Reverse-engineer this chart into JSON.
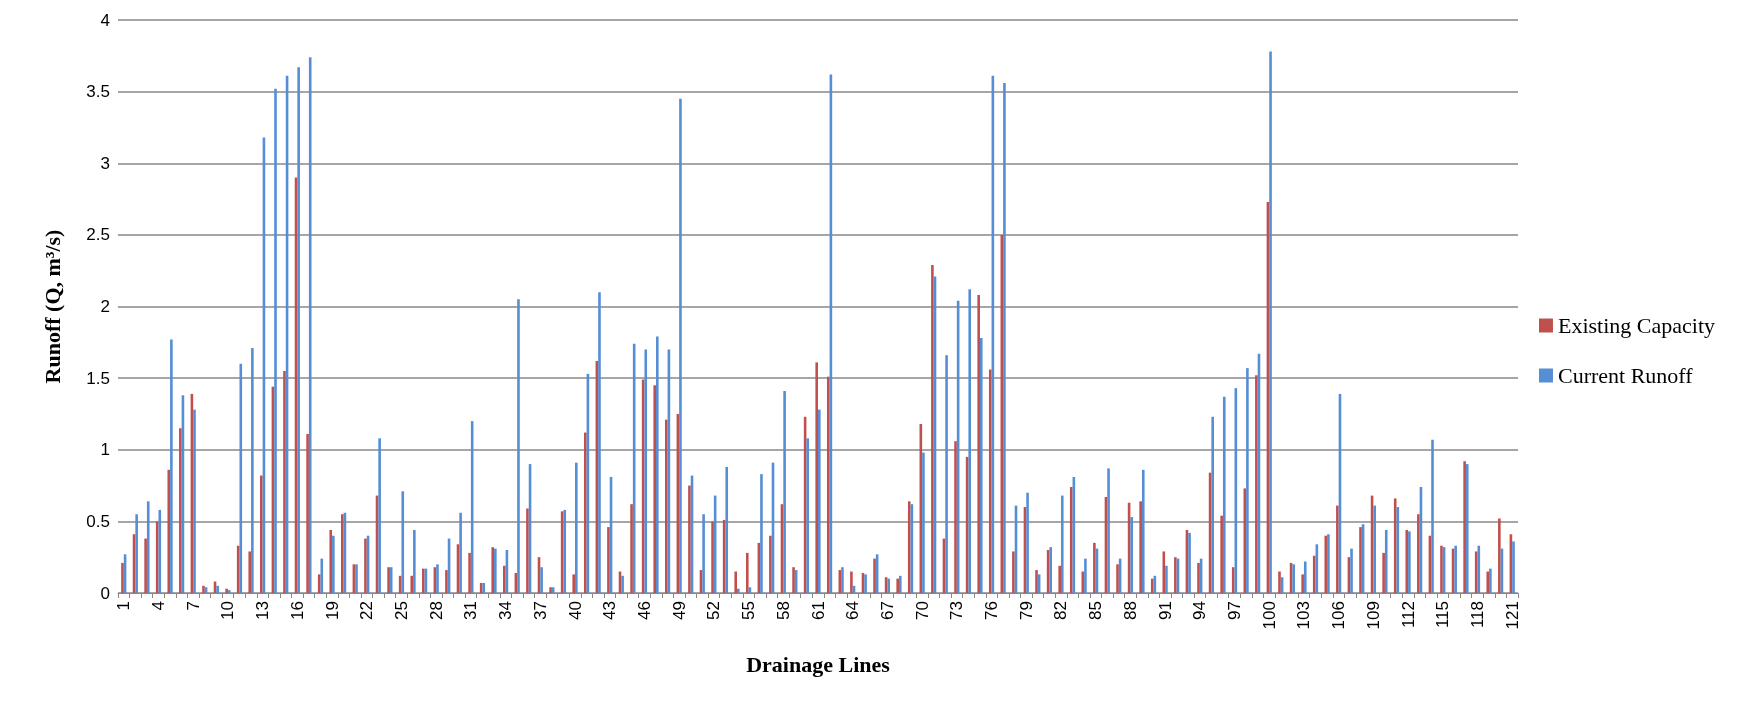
{
  "chart_data": {
    "type": "bar",
    "xlabel": "Drainage Lines",
    "ylabel": "Runoff (Q, m³/s)",
    "categories": [
      "1",
      null,
      null,
      "4",
      null,
      null,
      "7",
      null,
      null,
      "10",
      null,
      null,
      "13",
      null,
      null,
      "16",
      null,
      null,
      "19",
      null,
      null,
      "22",
      null,
      null,
      "25",
      null,
      null,
      "28",
      null,
      null,
      "31",
      null,
      null,
      "34",
      null,
      null,
      "37",
      null,
      null,
      "40",
      null,
      null,
      "43",
      null,
      null,
      "46",
      null,
      null,
      "49",
      null,
      null,
      "52",
      null,
      null,
      "55",
      null,
      null,
      "58",
      null,
      null,
      "61",
      null,
      null,
      "64",
      null,
      null,
      "67",
      null,
      null,
      "70",
      null,
      null,
      "73",
      null,
      null,
      "76",
      null,
      null,
      "79",
      null,
      null,
      "82",
      null,
      null,
      "85",
      null,
      null,
      "88",
      null,
      null,
      "91",
      null,
      null,
      "94",
      null,
      null,
      "97",
      null,
      null,
      "100",
      null,
      null,
      "103",
      null,
      null,
      "106",
      null,
      null,
      "109",
      null,
      null,
      "112",
      null,
      null,
      "115",
      null,
      null,
      "118",
      null,
      null,
      "121"
    ],
    "series": [
      {
        "name": "Existing Capacity",
        "color": "#c0504d",
        "values": [
          0.21,
          0.41,
          0.38,
          0.5,
          0.86,
          1.15,
          1.39,
          0.05,
          0.08,
          0.03,
          0.33,
          0.29,
          0.82,
          1.44,
          1.55,
          2.9,
          1.11,
          0.13,
          0.44,
          0.55,
          0.2,
          0.38,
          0.68,
          0.18,
          0.12,
          0.12,
          0.17,
          0.18,
          0.16,
          0.34,
          0.28,
          0.07,
          0.32,
          0.19,
          0.14,
          0.59,
          0.25,
          0.04,
          0.57,
          0.13,
          1.12,
          1.62,
          0.46,
          0.15,
          0.62,
          1.49,
          1.45,
          1.21,
          1.25,
          0.75,
          0.16,
          0.5,
          0.51,
          0.15,
          0.28,
          0.35,
          0.4,
          0.62,
          0.18,
          1.23,
          1.61,
          1.51,
          0.16,
          0.15,
          0.14,
          0.24,
          0.11,
          0.1,
          0.64,
          1.18,
          2.29,
          0.38,
          1.06,
          0.95,
          2.08,
          1.56,
          2.5,
          0.29,
          0.6,
          0.16,
          0.3,
          0.19,
          0.74,
          0.15,
          0.35,
          0.67,
          0.2,
          0.63,
          0.64,
          0.1,
          0.29,
          0.25,
          0.44,
          0.21,
          0.84,
          0.54,
          0.18,
          0.73,
          1.52,
          2.73,
          0.15,
          0.21,
          0.13,
          0.26,
          0.4,
          0.61,
          0.25,
          0.46,
          0.68,
          0.28,
          0.66,
          0.44,
          0.55,
          0.4,
          0.33,
          0.31,
          0.92,
          0.29,
          0.15,
          0.52,
          0.41
        ]
      },
      {
        "name": "Current Runoff",
        "color": "#558ed5",
        "values": [
          0.27,
          0.55,
          0.64,
          0.58,
          1.77,
          1.38,
          1.28,
          0.04,
          0.05,
          0.02,
          1.6,
          1.71,
          3.18,
          3.52,
          3.61,
          3.67,
          3.74,
          0.24,
          0.4,
          0.56,
          0.2,
          0.4,
          1.08,
          0.18,
          0.71,
          0.44,
          0.17,
          0.2,
          0.38,
          0.56,
          1.2,
          0.07,
          0.31,
          0.3,
          2.05,
          0.9,
          0.18,
          0.04,
          0.58,
          0.91,
          1.53,
          2.1,
          0.81,
          0.12,
          1.74,
          1.7,
          1.79,
          1.7,
          3.45,
          0.82,
          0.55,
          0.68,
          0.88,
          0.03,
          0.04,
          0.83,
          0.91,
          1.41,
          0.16,
          1.08,
          1.28,
          3.62,
          0.18,
          0.05,
          0.13,
          0.27,
          0.1,
          0.12,
          0.62,
          0.98,
          2.21,
          1.66,
          2.04,
          2.12,
          1.78,
          3.61,
          3.56,
          0.61,
          0.7,
          0.13,
          0.32,
          0.68,
          0.81,
          0.24,
          0.31,
          0.87,
          0.24,
          0.53,
          0.86,
          0.12,
          0.19,
          0.24,
          0.42,
          0.24,
          1.23,
          1.37,
          1.43,
          1.57,
          1.67,
          3.78,
          0.11,
          0.2,
          0.22,
          0.34,
          0.41,
          1.39,
          0.31,
          0.48,
          0.61,
          0.44,
          0.6,
          0.43,
          0.74,
          1.07,
          0.32,
          0.33,
          0.9,
          0.33,
          0.17,
          0.31,
          0.36
        ]
      }
    ],
    "ylim": [
      0,
      4
    ],
    "yticks": [
      0,
      0.5,
      1,
      1.5,
      2,
      2.5,
      3,
      3.5,
      4
    ],
    "grid": "y",
    "legend": "right"
  }
}
